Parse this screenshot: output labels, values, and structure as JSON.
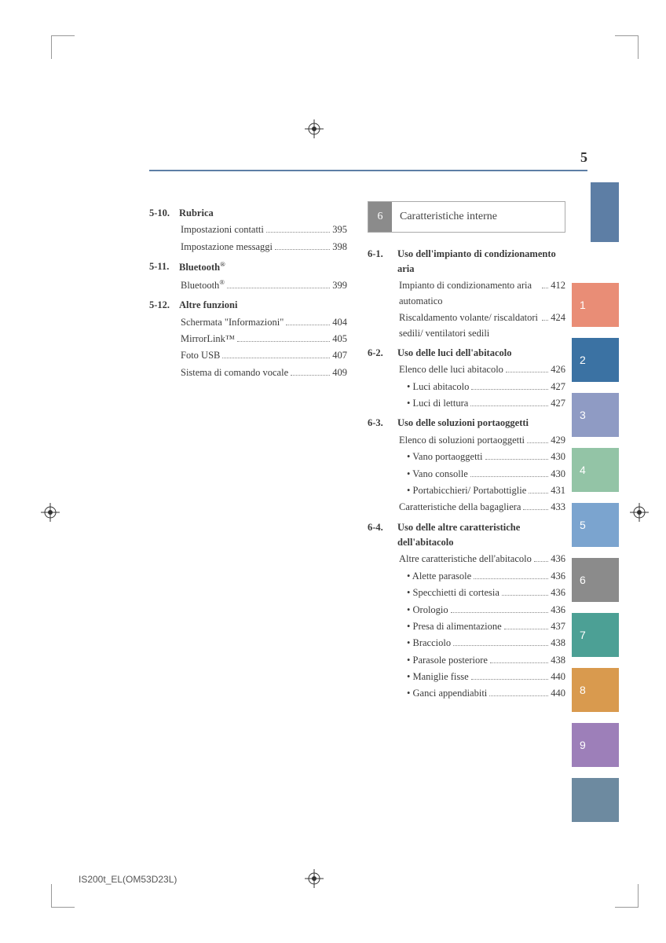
{
  "page_number": "5",
  "footer_code": "IS200t_EL(OM53D23L)",
  "chapter_box": {
    "num": "6",
    "title": "Caratteristiche interne"
  },
  "tabs": [
    {
      "label": "",
      "color": "#5d7ea5"
    },
    {
      "label": "1",
      "color": "#e98d76"
    },
    {
      "label": "2",
      "color": "#3b72a3"
    },
    {
      "label": "3",
      "color": "#8f9bc4"
    },
    {
      "label": "4",
      "color": "#93c4a6"
    },
    {
      "label": "5",
      "color": "#7ba4cf"
    },
    {
      "label": "6",
      "color": "#8b8b8b"
    },
    {
      "label": "7",
      "color": "#4ca095"
    },
    {
      "label": "8",
      "color": "#d99a4e"
    },
    {
      "label": "9",
      "color": "#9d7fb9"
    },
    {
      "label": "",
      "color": "#6d8aa0"
    }
  ],
  "left_col": [
    {
      "type": "head",
      "num": "5-10.",
      "title": "Rubrica"
    },
    {
      "type": "entry",
      "label": "Impostazioni contatti",
      "page": "395"
    },
    {
      "type": "entry",
      "label": "Impostazione messaggi",
      "page": "398"
    },
    {
      "type": "head",
      "num": "5-11.",
      "title_html": "Bluetooth<sup>®</sup>"
    },
    {
      "type": "entry",
      "label_html": "Bluetooth<sup>®</sup>",
      "page": "399"
    },
    {
      "type": "head",
      "num": "5-12.",
      "title": "Altre funzioni"
    },
    {
      "type": "entry",
      "label": "Schermata \"Informazioni\"",
      "page": "404"
    },
    {
      "type": "entry",
      "label": "MirrorLink™",
      "page": "405"
    },
    {
      "type": "entry",
      "label": "Foto USB",
      "page": "407"
    },
    {
      "type": "entry",
      "label": "Sistema di comando vocale",
      "page": "409"
    }
  ],
  "right_col": [
    {
      "type": "head",
      "num": "6-1.",
      "title": "Uso dell'impianto di condizionamento aria"
    },
    {
      "type": "entry",
      "label": "Impianto di condizionamento aria automatico",
      "page": "412"
    },
    {
      "type": "entry",
      "label": "Riscaldamento volante/ riscaldatori sedili/ ventilatori sedili",
      "page": "424"
    },
    {
      "type": "head",
      "num": "6-2.",
      "title": "Uso delle luci dell'abitacolo"
    },
    {
      "type": "entry",
      "label": "Elenco delle luci abitacolo",
      "page": "426"
    },
    {
      "type": "sub",
      "label": "Luci abitacolo",
      "page": "427"
    },
    {
      "type": "sub",
      "label": "Luci di lettura",
      "page": "427"
    },
    {
      "type": "head",
      "num": "6-3.",
      "title": "Uso delle soluzioni portaoggetti"
    },
    {
      "type": "entry",
      "label": "Elenco di soluzioni portaoggetti",
      "page": "429"
    },
    {
      "type": "sub",
      "label": "Vano portaoggetti",
      "page": "430"
    },
    {
      "type": "sub",
      "label": "Vano consolle",
      "page": "430"
    },
    {
      "type": "sub",
      "label": "Portabicchieri/ Portabottiglie",
      "page": "431"
    },
    {
      "type": "entry",
      "label": "Caratteristiche della bagagliera",
      "page": "433"
    },
    {
      "type": "head",
      "num": "6-4.",
      "title": "Uso delle altre caratteristiche dell'abitacolo"
    },
    {
      "type": "entry",
      "label": "Altre caratteristiche dell'abitacolo",
      "page": "436"
    },
    {
      "type": "sub",
      "label": "Alette parasole",
      "page": "436"
    },
    {
      "type": "sub",
      "label": "Specchietti di cortesia",
      "page": "436"
    },
    {
      "type": "sub",
      "label": "Orologio",
      "page": "436"
    },
    {
      "type": "sub",
      "label": "Presa di alimentazione",
      "page": "437"
    },
    {
      "type": "sub",
      "label": "Bracciolo",
      "page": "438"
    },
    {
      "type": "sub",
      "label": "Parasole posteriore",
      "page": "438"
    },
    {
      "type": "sub",
      "label": "Maniglie fisse",
      "page": "440"
    },
    {
      "type": "sub",
      "label": "Ganci appendiabiti",
      "page": "440"
    }
  ]
}
